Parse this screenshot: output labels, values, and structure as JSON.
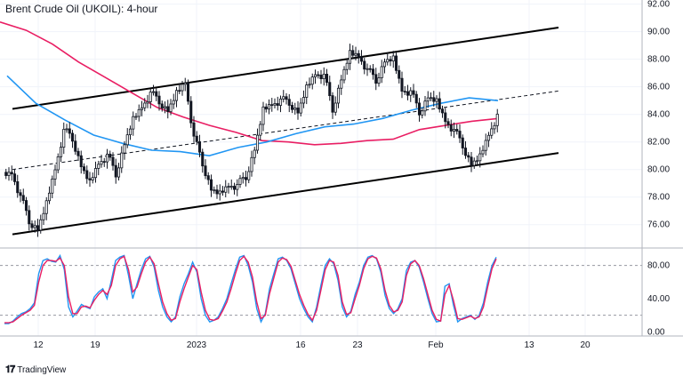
{
  "title": "Brent Crude Oil (UKOIL): 4-hour",
  "brand": "TradingView",
  "brand_logo_icon": "tradingview-logo-icon",
  "colors": {
    "candle": "#131722",
    "ma_pink": "#e91e63",
    "ma_blue": "#2196f3",
    "stoch_k": "#2196f3",
    "stoch_d": "#e91e63",
    "channel": "#000000",
    "grid": "#f0f3fa"
  },
  "chart_data": [
    {
      "type": "candlestick",
      "title": "Brent Crude Oil (UKOIL): 4-hour",
      "x_tick_labels": [
        "12",
        "19",
        "2023",
        "16",
        "23",
        "Feb",
        "13",
        "20"
      ],
      "y_tick_labels": [
        "92.00",
        "90.00",
        "88.00",
        "86.00",
        "84.00",
        "82.00",
        "80.00",
        "78.00",
        "76.00"
      ],
      "ylim": [
        74.5,
        92.3
      ],
      "close_series": [
        79.8,
        78.0,
        76.3,
        75.6,
        77.5,
        80.1,
        82.8,
        82.3,
        80.2,
        79.0,
        80.5,
        81.0,
        79.7,
        81.8,
        83.6,
        84.6,
        85.5,
        85.0,
        84.2,
        85.5,
        86.4,
        82.3,
        80.5,
        78.5,
        78.2,
        78.9,
        78.8,
        79.5,
        81.4,
        84.3,
        84.8,
        85.0,
        84.9,
        84.1,
        85.9,
        87.0,
        86.8,
        84.4,
        86.5,
        88.4,
        88.3,
        87.2,
        86.5,
        87.8,
        88.0,
        85.8,
        85.6,
        84.2,
        85.2,
        84.9,
        83.6,
        82.8,
        81.8,
        80.3,
        80.9,
        82.6,
        83.9
      ],
      "series": [
        {
          "name": "Moving average 1",
          "color": "#e91e63",
          "values": [
            90.7,
            90.1,
            89.1,
            87.8,
            86.7,
            85.6,
            84.5,
            83.8,
            83.2,
            82.7,
            82.1,
            82.0,
            81.8,
            81.9,
            82.1,
            82.2,
            82.9,
            83.2,
            83.5,
            83.7
          ]
        },
        {
          "name": "Moving average 2",
          "color": "#2196f3",
          "values": [
            86.8,
            84.8,
            83.6,
            82.5,
            81.9,
            81.4,
            81.3,
            81.0,
            81.6,
            82.0,
            82.6,
            83.1,
            83.3,
            83.7,
            84.3,
            84.8,
            85.2,
            85.0
          ]
        }
      ],
      "channel": {
        "upper": [
          84.4,
          90.3
        ],
        "lower": [
          75.3,
          81.2
        ],
        "mid": [
          80.0,
          85.7
        ]
      },
      "grid": true
    },
    {
      "type": "line",
      "title": "",
      "y_tick_labels": [
        "80.00",
        "40.00",
        "0.00"
      ],
      "ylim": [
        -5,
        100
      ],
      "reference_lines": [
        80,
        20
      ],
      "series": [
        {
          "name": "",
          "color": "#2196f3",
          "values": [
            10,
            10,
            13,
            18,
            22,
            24,
            28,
            35,
            70,
            86,
            88,
            85,
            84,
            92,
            75,
            30,
            18,
            25,
            33,
            30,
            28,
            42,
            48,
            52,
            40,
            62,
            86,
            90,
            92,
            68,
            40,
            58,
            75,
            88,
            91,
            78,
            50,
            30,
            18,
            12,
            18,
            42,
            58,
            70,
            84,
            72,
            40,
            20,
            12,
            14,
            18,
            28,
            40,
            58,
            75,
            90,
            92,
            80,
            60,
            28,
            12,
            22,
            52,
            70,
            88,
            90,
            86,
            76,
            58,
            40,
            28,
            18,
            12,
            30,
            56,
            80,
            88,
            82,
            62,
            30,
            18,
            25,
            45,
            60,
            80,
            90,
            92,
            88,
            72,
            44,
            28,
            22,
            28,
            40,
            74,
            84,
            86,
            78,
            60,
            40,
            22,
            12,
            13,
            55,
            58,
            32,
            12,
            16,
            18,
            20,
            15,
            20,
            35,
            60,
            80,
            90
          ]
        },
        {
          "name": "",
          "color": "#e91e63",
          "values": [
            11,
            11,
            12,
            16,
            20,
            23,
            26,
            32,
            60,
            80,
            86,
            86,
            85,
            89,
            80,
            42,
            22,
            22,
            30,
            31,
            29,
            38,
            45,
            50,
            45,
            56,
            80,
            88,
            91,
            75,
            48,
            54,
            70,
            84,
            90,
            82,
            58,
            36,
            22,
            14,
            16,
            36,
            52,
            66,
            80,
            75,
            48,
            26,
            15,
            14,
            16,
            25,
            36,
            52,
            70,
            86,
            91,
            84,
            66,
            36,
            16,
            20,
            46,
            65,
            84,
            89,
            87,
            79,
            62,
            45,
            32,
            21,
            14,
            26,
            50,
            75,
            86,
            84,
            68,
            36,
            21,
            23,
            40,
            56,
            76,
            88,
            91,
            89,
            76,
            50,
            32,
            24,
            26,
            36,
            68,
            82,
            86,
            80,
            64,
            45,
            26,
            15,
            13,
            45,
            56,
            38,
            16,
            15,
            17,
            19,
            16,
            18,
            30,
            54,
            76,
            88
          ]
        }
      ],
      "grid": true
    }
  ]
}
